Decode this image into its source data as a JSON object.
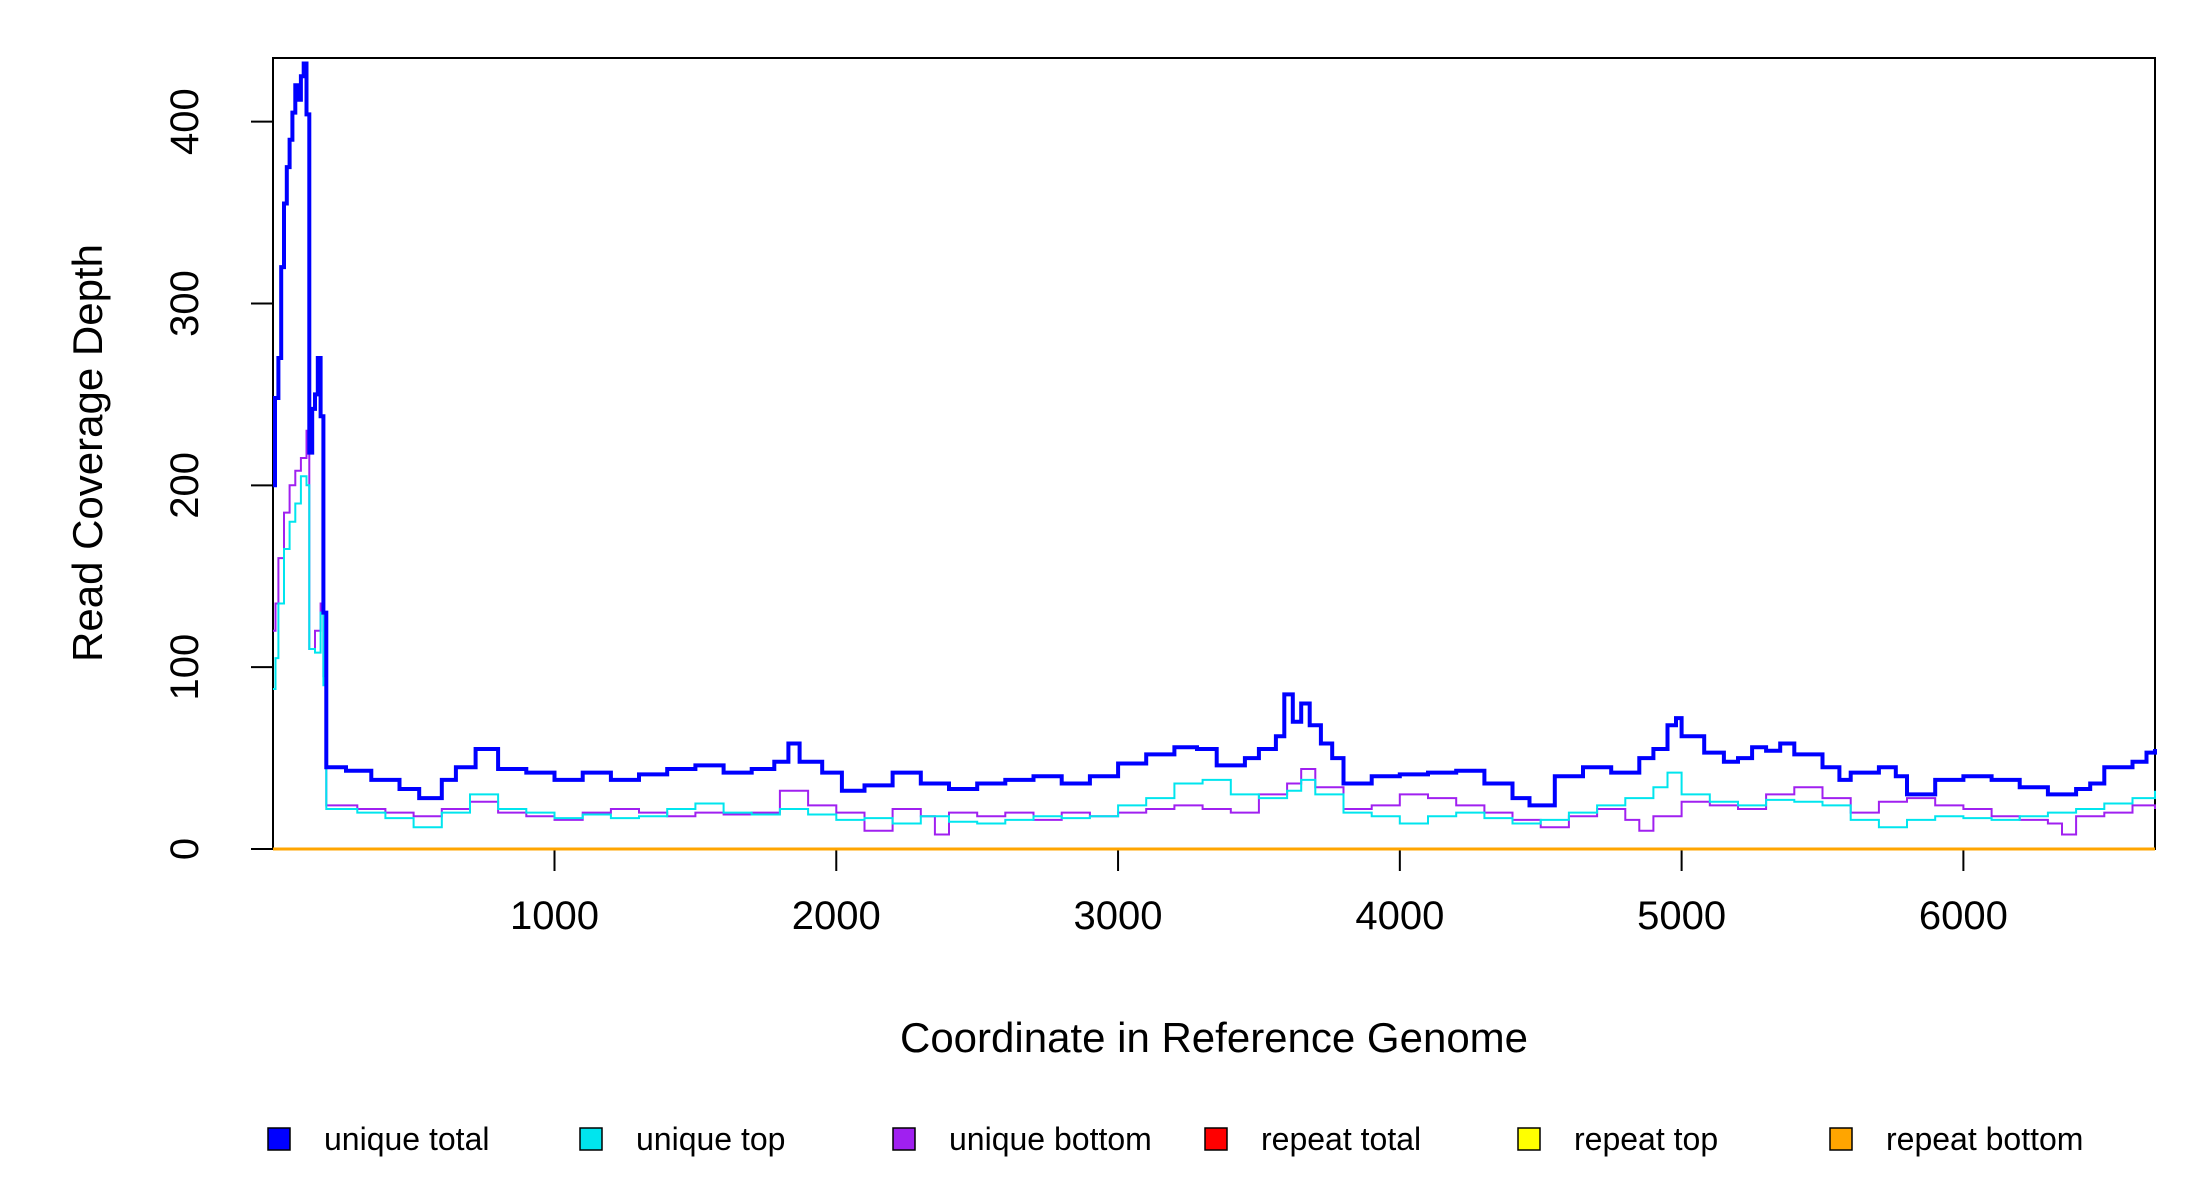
{
  "chart_data": {
    "type": "line",
    "xlabel": "Coordinate in Reference Genome",
    "ylabel": "Read Coverage Depth",
    "xlim": [
      1,
      6680
    ],
    "ylim": [
      0,
      435
    ],
    "xticks": [
      1000,
      2000,
      3000,
      4000,
      5000,
      6000
    ],
    "yticks": [
      0,
      100,
      200,
      300,
      400
    ],
    "grid": false,
    "legend_position": "bottom",
    "series": [
      {
        "name": "unique total",
        "color": "#0000ff",
        "points": [
          [
            1,
            200
          ],
          [
            8,
            248
          ],
          [
            20,
            270
          ],
          [
            30,
            320
          ],
          [
            40,
            355
          ],
          [
            50,
            375
          ],
          [
            60,
            390
          ],
          [
            70,
            405
          ],
          [
            80,
            420
          ],
          [
            90,
            412
          ],
          [
            100,
            425
          ],
          [
            110,
            432
          ],
          [
            120,
            404
          ],
          [
            130,
            218
          ],
          [
            140,
            242
          ],
          [
            150,
            250
          ],
          [
            160,
            270
          ],
          [
            170,
            238
          ],
          [
            180,
            130
          ],
          [
            190,
            45
          ],
          [
            260,
            43
          ],
          [
            350,
            38
          ],
          [
            450,
            33
          ],
          [
            520,
            28
          ],
          [
            600,
            38
          ],
          [
            650,
            45
          ],
          [
            720,
            55
          ],
          [
            800,
            44
          ],
          [
            900,
            42
          ],
          [
            1000,
            38
          ],
          [
            1100,
            42
          ],
          [
            1200,
            38
          ],
          [
            1300,
            41
          ],
          [
            1400,
            44
          ],
          [
            1500,
            46
          ],
          [
            1600,
            42
          ],
          [
            1700,
            44
          ],
          [
            1780,
            48
          ],
          [
            1830,
            58
          ],
          [
            1870,
            48
          ],
          [
            1950,
            42
          ],
          [
            2020,
            32
          ],
          [
            2100,
            35
          ],
          [
            2200,
            42
          ],
          [
            2300,
            36
          ],
          [
            2400,
            33
          ],
          [
            2500,
            36
          ],
          [
            2600,
            38
          ],
          [
            2700,
            40
          ],
          [
            2800,
            36
          ],
          [
            2900,
            40
          ],
          [
            3000,
            47
          ],
          [
            3100,
            52
          ],
          [
            3200,
            56
          ],
          [
            3280,
            55
          ],
          [
            3350,
            46
          ],
          [
            3450,
            50
          ],
          [
            3500,
            55
          ],
          [
            3560,
            62
          ],
          [
            3590,
            85
          ],
          [
            3620,
            70
          ],
          [
            3650,
            80
          ],
          [
            3680,
            68
          ],
          [
            3720,
            58
          ],
          [
            3760,
            50
          ],
          [
            3800,
            36
          ],
          [
            3900,
            40
          ],
          [
            4000,
            41
          ],
          [
            4100,
            42
          ],
          [
            4200,
            43
          ],
          [
            4300,
            36
          ],
          [
            4400,
            28
          ],
          [
            4460,
            24
          ],
          [
            4550,
            40
          ],
          [
            4650,
            45
          ],
          [
            4750,
            42
          ],
          [
            4850,
            50
          ],
          [
            4900,
            55
          ],
          [
            4950,
            68
          ],
          [
            4980,
            72
          ],
          [
            5000,
            62
          ],
          [
            5080,
            53
          ],
          [
            5150,
            48
          ],
          [
            5200,
            50
          ],
          [
            5250,
            56
          ],
          [
            5300,
            54
          ],
          [
            5350,
            58
          ],
          [
            5400,
            52
          ],
          [
            5500,
            45
          ],
          [
            5560,
            38
          ],
          [
            5600,
            42
          ],
          [
            5700,
            45
          ],
          [
            5760,
            40
          ],
          [
            5800,
            30
          ],
          [
            5900,
            38
          ],
          [
            6000,
            40
          ],
          [
            6100,
            38
          ],
          [
            6200,
            34
          ],
          [
            6300,
            30
          ],
          [
            6400,
            33
          ],
          [
            6450,
            36
          ],
          [
            6500,
            45
          ],
          [
            6600,
            48
          ],
          [
            6650,
            53
          ],
          [
            6680,
            55
          ]
        ]
      },
      {
        "name": "unique top",
        "color": "#00e5ee",
        "points": [
          [
            1,
            88
          ],
          [
            10,
            105
          ],
          [
            20,
            135
          ],
          [
            40,
            165
          ],
          [
            60,
            180
          ],
          [
            80,
            190
          ],
          [
            100,
            205
          ],
          [
            120,
            200
          ],
          [
            130,
            110
          ],
          [
            150,
            108
          ],
          [
            170,
            130
          ],
          [
            180,
            90
          ],
          [
            190,
            22
          ],
          [
            300,
            20
          ],
          [
            400,
            17
          ],
          [
            500,
            12
          ],
          [
            600,
            20
          ],
          [
            700,
            30
          ],
          [
            800,
            22
          ],
          [
            900,
            20
          ],
          [
            1000,
            17
          ],
          [
            1100,
            19
          ],
          [
            1200,
            17
          ],
          [
            1300,
            18
          ],
          [
            1400,
            22
          ],
          [
            1500,
            25
          ],
          [
            1600,
            20
          ],
          [
            1700,
            19
          ],
          [
            1800,
            22
          ],
          [
            1900,
            19
          ],
          [
            2000,
            16
          ],
          [
            2100,
            17
          ],
          [
            2200,
            14
          ],
          [
            2300,
            18
          ],
          [
            2400,
            15
          ],
          [
            2500,
            14
          ],
          [
            2600,
            16
          ],
          [
            2700,
            18
          ],
          [
            2800,
            17
          ],
          [
            2900,
            18
          ],
          [
            3000,
            24
          ],
          [
            3100,
            28
          ],
          [
            3200,
            36
          ],
          [
            3300,
            38
          ],
          [
            3400,
            30
          ],
          [
            3500,
            28
          ],
          [
            3600,
            32
          ],
          [
            3650,
            38
          ],
          [
            3700,
            30
          ],
          [
            3800,
            20
          ],
          [
            3900,
            18
          ],
          [
            4000,
            14
          ],
          [
            4100,
            18
          ],
          [
            4200,
            20
          ],
          [
            4300,
            17
          ],
          [
            4400,
            14
          ],
          [
            4500,
            16
          ],
          [
            4600,
            20
          ],
          [
            4700,
            24
          ],
          [
            4800,
            28
          ],
          [
            4900,
            34
          ],
          [
            4950,
            42
          ],
          [
            5000,
            30
          ],
          [
            5100,
            26
          ],
          [
            5200,
            24
          ],
          [
            5300,
            27
          ],
          [
            5400,
            26
          ],
          [
            5500,
            24
          ],
          [
            5600,
            16
          ],
          [
            5700,
            12
          ],
          [
            5800,
            16
          ],
          [
            5900,
            18
          ],
          [
            6000,
            17
          ],
          [
            6100,
            16
          ],
          [
            6200,
            18
          ],
          [
            6300,
            20
          ],
          [
            6400,
            22
          ],
          [
            6500,
            25
          ],
          [
            6600,
            28
          ],
          [
            6680,
            32
          ]
        ]
      },
      {
        "name": "unique bottom",
        "color": "#a020f0",
        "points": [
          [
            1,
            120
          ],
          [
            10,
            135
          ],
          [
            20,
            160
          ],
          [
            40,
            185
          ],
          [
            60,
            200
          ],
          [
            80,
            208
          ],
          [
            100,
            215
          ],
          [
            120,
            230
          ],
          [
            130,
            110
          ],
          [
            150,
            120
          ],
          [
            170,
            135
          ],
          [
            180,
            95
          ],
          [
            190,
            24
          ],
          [
            300,
            22
          ],
          [
            400,
            20
          ],
          [
            500,
            18
          ],
          [
            600,
            22
          ],
          [
            700,
            26
          ],
          [
            800,
            20
          ],
          [
            900,
            18
          ],
          [
            1000,
            16
          ],
          [
            1100,
            20
          ],
          [
            1200,
            22
          ],
          [
            1300,
            20
          ],
          [
            1400,
            18
          ],
          [
            1500,
            20
          ],
          [
            1600,
            19
          ],
          [
            1700,
            20
          ],
          [
            1800,
            32
          ],
          [
            1900,
            24
          ],
          [
            2000,
            20
          ],
          [
            2100,
            10
          ],
          [
            2200,
            22
          ],
          [
            2300,
            18
          ],
          [
            2350,
            8
          ],
          [
            2400,
            20
          ],
          [
            2500,
            18
          ],
          [
            2600,
            20
          ],
          [
            2700,
            16
          ],
          [
            2800,
            20
          ],
          [
            2900,
            18
          ],
          [
            3000,
            20
          ],
          [
            3100,
            22
          ],
          [
            3200,
            24
          ],
          [
            3300,
            22
          ],
          [
            3400,
            20
          ],
          [
            3500,
            30
          ],
          [
            3600,
            36
          ],
          [
            3650,
            44
          ],
          [
            3700,
            34
          ],
          [
            3800,
            22
          ],
          [
            3900,
            24
          ],
          [
            4000,
            30
          ],
          [
            4100,
            28
          ],
          [
            4200,
            24
          ],
          [
            4300,
            20
          ],
          [
            4400,
            16
          ],
          [
            4500,
            12
          ],
          [
            4600,
            18
          ],
          [
            4700,
            22
          ],
          [
            4800,
            16
          ],
          [
            4850,
            10
          ],
          [
            4900,
            18
          ],
          [
            5000,
            26
          ],
          [
            5100,
            24
          ],
          [
            5200,
            22
          ],
          [
            5300,
            30
          ],
          [
            5400,
            34
          ],
          [
            5500,
            28
          ],
          [
            5600,
            20
          ],
          [
            5700,
            26
          ],
          [
            5800,
            28
          ],
          [
            5900,
            24
          ],
          [
            6000,
            22
          ],
          [
            6100,
            18
          ],
          [
            6200,
            16
          ],
          [
            6300,
            14
          ],
          [
            6350,
            8
          ],
          [
            6400,
            18
          ],
          [
            6500,
            20
          ],
          [
            6600,
            24
          ],
          [
            6680,
            22
          ]
        ]
      },
      {
        "name": "repeat total",
        "color": "#ff0000",
        "points": [
          [
            1,
            0
          ],
          [
            6680,
            0
          ]
        ]
      },
      {
        "name": "repeat top",
        "color": "#ffff00",
        "points": [
          [
            1,
            0
          ],
          [
            6680,
            0
          ]
        ]
      },
      {
        "name": "repeat bottom",
        "color": "#ffa500",
        "points": [
          [
            1,
            0
          ],
          [
            6680,
            0
          ]
        ]
      }
    ]
  }
}
